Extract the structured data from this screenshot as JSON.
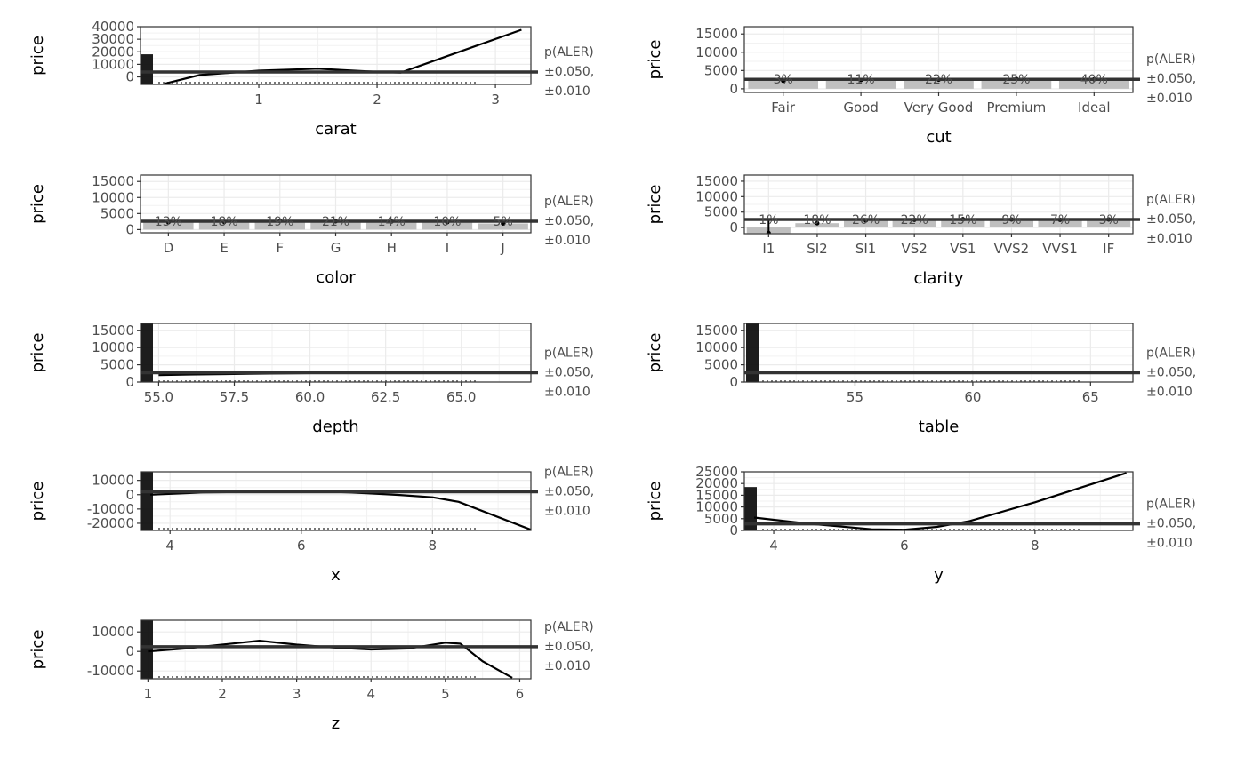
{
  "ylabel": "price",
  "alerLines": [
    "p(ALER)",
    "±0.050,",
    "±0.010"
  ],
  "chart_data": [
    {
      "type": "line",
      "xlabel": "carat",
      "ylabel": "price",
      "xlim": [
        0.0,
        3.3
      ],
      "ylim": [
        -6000,
        40000
      ],
      "xticks": [
        1,
        2,
        3
      ],
      "yticks": [
        0,
        10000,
        20000,
        30000,
        40000
      ],
      "yticklabels": [
        "0",
        "10000",
        "20000",
        "30000",
        "40000"
      ],
      "ale": {
        "x": [
          0.2,
          0.5,
          1.0,
          1.5,
          2.0,
          2.2,
          3.22
        ],
        "y": [
          -5500,
          1500,
          5000,
          6500,
          4000,
          3500,
          37500
        ]
      },
      "mean": 3932,
      "rug_max": 18000
    },
    {
      "type": "bar",
      "xlabel": "cut",
      "ylabel": "price",
      "ylim": [
        -1000,
        17000
      ],
      "yticks": [
        0,
        5000,
        10000,
        15000
      ],
      "yticklabels": [
        "0",
        "5000",
        "10000",
        "15000"
      ],
      "categories": [
        "Fair",
        "Good",
        "Very Good",
        "Premium",
        "Ideal"
      ],
      "values": [
        2200,
        2400,
        2500,
        2700,
        2600
      ],
      "percent": [
        "3%",
        "11%",
        "22%",
        "25%",
        "40%"
      ],
      "mean": 2600
    },
    {
      "type": "bar",
      "xlabel": "color",
      "ylabel": "price",
      "ylim": [
        -1000,
        17000
      ],
      "yticks": [
        0,
        5000,
        10000,
        15000
      ],
      "yticklabels": [
        "0",
        "5000",
        "10000",
        "15000"
      ],
      "categories": [
        "D",
        "E",
        "F",
        "G",
        "H",
        "I",
        "J"
      ],
      "values": [
        2300,
        2400,
        2700,
        2600,
        2500,
        2300,
        1900
      ],
      "percent": [
        "13%",
        "18%",
        "19%",
        "21%",
        "14%",
        "10%",
        "5%"
      ],
      "mean": 2600
    },
    {
      "type": "bar",
      "xlabel": "clarity",
      "ylabel": "price",
      "ylim": [
        -2000,
        17000
      ],
      "yticks": [
        0,
        5000,
        10000,
        15000
      ],
      "yticklabels": [
        "0",
        "5000",
        "10000",
        "15000"
      ],
      "categories": [
        "I1",
        "SI2",
        "SI1",
        "VS2",
        "VS1",
        "VVS2",
        "VVS1",
        "IF"
      ],
      "values": [
        -1800,
        1400,
        2300,
        2500,
        2700,
        2600,
        2500,
        2600
      ],
      "percent": [
        "1%",
        "18%",
        "26%",
        "22%",
        "15%",
        "9%",
        "7%",
        "3%"
      ],
      "mean": 2600
    },
    {
      "type": "line",
      "xlabel": "depth",
      "ylabel": "price",
      "xlim": [
        54.4,
        67.3
      ],
      "ylim": [
        0,
        17000
      ],
      "xticks": [
        55.0,
        57.5,
        60.0,
        62.5,
        65.0
      ],
      "xticklabels": [
        "55.0",
        "57.5",
        "60.0",
        "62.5",
        "65.0"
      ],
      "yticks": [
        0,
        5000,
        10000,
        15000
      ],
      "yticklabels": [
        "0",
        "5000",
        "10000",
        "15000"
      ],
      "ale": {
        "x": [
          55.0,
          56.0,
          58.0,
          60.0,
          62.0,
          64.0,
          67.0
        ],
        "y": [
          2000,
          2200,
          2400,
          2600,
          2700,
          2700,
          2800
        ]
      },
      "mean": 2700,
      "rug_max": 17000
    },
    {
      "type": "line",
      "xlabel": "table",
      "ylabel": "price",
      "xlim": [
        50.3,
        66.8
      ],
      "ylim": [
        0,
        17000
      ],
      "xticks": [
        55,
        60,
        65
      ],
      "yticks": [
        0,
        5000,
        10000,
        15000
      ],
      "yticklabels": [
        "0",
        "5000",
        "10000",
        "15000"
      ],
      "ale": {
        "x": [
          51,
          55,
          60,
          65,
          66.8
        ],
        "y": [
          3000,
          2800,
          2700,
          2700,
          2700
        ]
      },
      "mean": 2700,
      "rug_max": 17000
    },
    {
      "type": "line",
      "xlabel": "x",
      "ylabel": "price",
      "xlim": [
        3.55,
        9.5
      ],
      "ylim": [
        -25000,
        16000
      ],
      "xticks": [
        4,
        6,
        8
      ],
      "yticks": [
        -20000,
        -10000,
        0,
        10000
      ],
      "yticklabels": [
        "-20000",
        "-10000",
        "0",
        "10000"
      ],
      "ale": {
        "x": [
          3.7,
          4.5,
          5.5,
          6.0,
          6.5,
          7.0,
          7.5,
          8.0,
          8.4,
          9.5
        ],
        "y": [
          0,
          1500,
          2200,
          2500,
          2000,
          1000,
          -200,
          -1800,
          -5000,
          -24500
        ]
      },
      "mean": 2000,
      "rug_max": 16000
    },
    {
      "type": "line",
      "xlabel": "y",
      "ylabel": "price",
      "xlim": [
        3.55,
        9.5
      ],
      "ylim": [
        0,
        25000
      ],
      "xticks": [
        4,
        6,
        8
      ],
      "yticks": [
        0,
        5000,
        10000,
        15000,
        20000,
        25000
      ],
      "yticklabels": [
        "0",
        "5000",
        "10000",
        "15000",
        "20000",
        "25000"
      ],
      "ale": {
        "x": [
          3.7,
          4.5,
          5.5,
          6.0,
          6.5,
          7.0,
          8.0,
          9.4
        ],
        "y": [
          5500,
          3000,
          500,
          300,
          1500,
          4000,
          12000,
          24500
        ]
      },
      "mean": 2800,
      "rug_max": 18500
    },
    {
      "type": "line",
      "xlabel": "z",
      "ylabel": "price",
      "xlim": [
        0.9,
        6.15
      ],
      "ylim": [
        -14000,
        16000
      ],
      "xticks": [
        1,
        2,
        3,
        4,
        5,
        6
      ],
      "yticks": [
        -10000,
        0,
        10000
      ],
      "yticklabels": [
        "-10000",
        "0",
        "10000"
      ],
      "ale": {
        "x": [
          1.0,
          1.5,
          2.0,
          2.5,
          3.0,
          3.5,
          4.0,
          4.5,
          5.0,
          5.2,
          5.5,
          5.9
        ],
        "y": [
          0,
          1500,
          3500,
          5500,
          3500,
          2000,
          1000,
          1500,
          4500,
          4000,
          -5000,
          -13500
        ]
      },
      "mean": 2400,
      "rug_max": 16000
    }
  ]
}
